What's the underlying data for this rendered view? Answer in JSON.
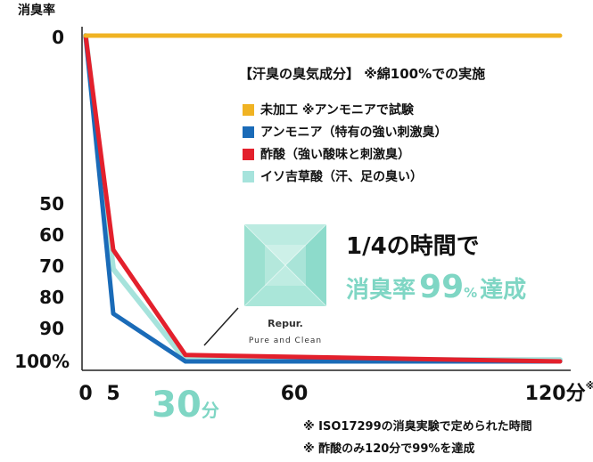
{
  "chart_data": {
    "type": "line",
    "ylabel": "消臭率",
    "y_ticks": [
      "0",
      "50",
      "60",
      "70",
      "80",
      "90",
      "100%"
    ],
    "x_ticks": [
      {
        "label": "0",
        "suffix": "",
        "sup": "",
        "highlight": false
      },
      {
        "label": "5",
        "suffix": "",
        "sup": "",
        "highlight": false
      },
      {
        "label": "30",
        "suffix": "分",
        "sup": "",
        "highlight": true
      },
      {
        "label": "60",
        "suffix": "",
        "sup": "",
        "highlight": false
      },
      {
        "label": "120",
        "suffix": "分",
        "sup": "※",
        "highlight": false
      }
    ],
    "legend_title": "【汗臭の臭気成分】 ※綿100%での実施",
    "series": [
      {
        "name": "未加工 ※アンモニアで試験",
        "color": "#f0b323",
        "points": [
          [
            0,
            0
          ],
          [
            120,
            0
          ]
        ]
      },
      {
        "name": "アンモニア（特有の強い刺激臭）",
        "color": "#1a6bb8",
        "points": [
          [
            0,
            0
          ],
          [
            5,
            85
          ],
          [
            30,
            100
          ],
          [
            120,
            100
          ]
        ]
      },
      {
        "name": "酢酸（強い酸味と刺激臭）",
        "color": "#e3202c",
        "points": [
          [
            0,
            0
          ],
          [
            5,
            65
          ],
          [
            30,
            98
          ],
          [
            120,
            100
          ]
        ]
      },
      {
        "name": "イソ吉草酸（汗、足の臭い）",
        "color": "#a6e3dc",
        "points": [
          [
            0,
            0
          ],
          [
            5,
            71
          ],
          [
            30,
            99.5
          ],
          [
            120,
            99.5
          ]
        ]
      }
    ],
    "annotation": {
      "line1": "1/4の時間で",
      "line2_prefix": "消臭率",
      "line2_num": "99",
      "line2_pct": "%",
      "line2_suffix": "達成"
    }
  },
  "logo": {
    "name": "Repur.",
    "tagline": "Pure and Clean"
  },
  "notes": [
    "※ ISO17299の消臭実験で定められた時間",
    "※ 酢酸のみ120分で99%を達成"
  ]
}
